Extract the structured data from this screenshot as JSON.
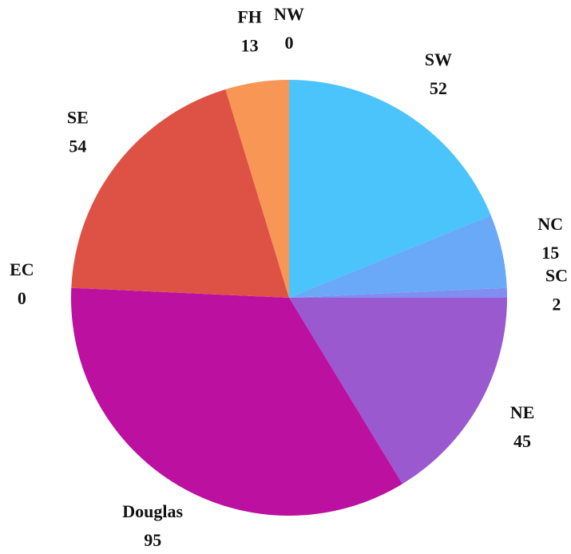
{
  "chart_data": {
    "type": "pie",
    "categories": [
      "NW",
      "SW",
      "NC",
      "SC",
      "NE",
      "Douglas",
      "EC",
      "SE",
      "FH"
    ],
    "values": [
      0,
      52,
      15,
      2,
      45,
      95,
      0,
      54,
      13
    ],
    "colors": [
      "#3fa9f5",
      "#4bc3fb",
      "#6aa8f8",
      "#7f8ef0",
      "#9b59d0",
      "#bb10a0",
      "#c2185b",
      "#de5246",
      "#f79655"
    ]
  }
}
